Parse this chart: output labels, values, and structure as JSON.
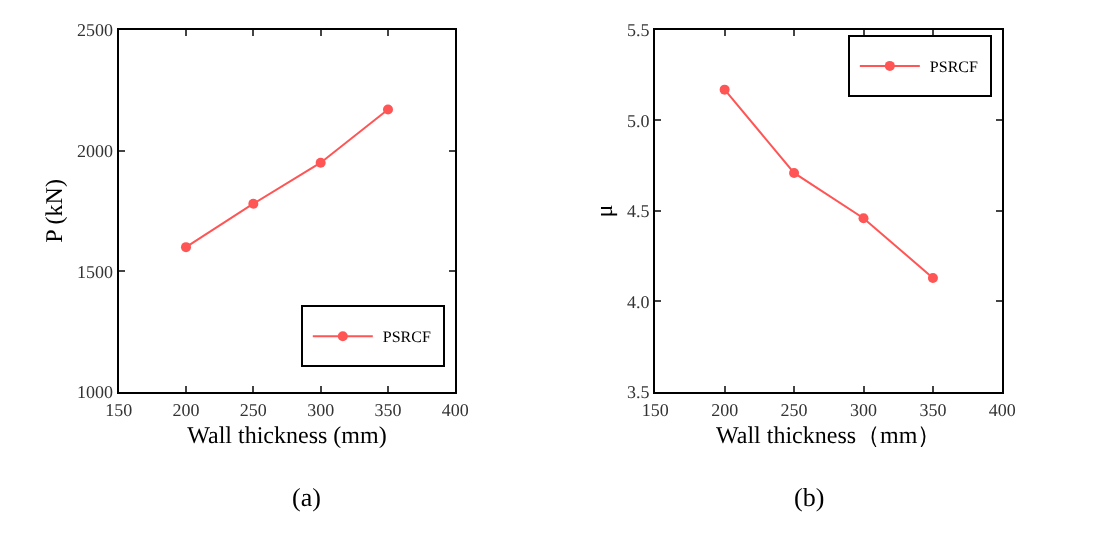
{
  "chart_data": [
    {
      "type": "line",
      "xlabel": "Wall thickness (mm)",
      "ylabel": "P (kN)",
      "annotations": [
        "(a)"
      ],
      "x": [
        200,
        250,
        300,
        350
      ],
      "series": [
        {
          "name": "PSRCF",
          "color": "#ff5555",
          "values": [
            1600,
            1780,
            1950,
            2170
          ]
        }
      ],
      "xlim": [
        150,
        400
      ],
      "xticks": [
        150,
        200,
        250,
        300,
        350,
        400
      ],
      "ylim": [
        1000,
        2500
      ],
      "yticks": [
        1000,
        1500,
        2000,
        2500
      ],
      "legend": "bottom right",
      "marker": "circle",
      "line_style": "solid"
    },
    {
      "type": "line",
      "xlabel": "Wall thickness（mm）",
      "ylabel": "μ",
      "annotations": [
        "(b)"
      ],
      "x": [
        200,
        250,
        300,
        350
      ],
      "series": [
        {
          "name": "PSRCF",
          "color": "#ff5555",
          "values": [
            5.17,
            4.71,
            4.46,
            4.13
          ]
        }
      ],
      "xlim": [
        150,
        400
      ],
      "xticks": [
        150,
        200,
        250,
        300,
        350,
        400
      ],
      "ylim": [
        3.5,
        5.5
      ],
      "yticks": [
        3.5,
        {
          "value": 4,
          "label": "4.0"
        },
        4.5,
        {
          "value": 5,
          "label": "5.0"
        },
        5.5
      ],
      "legend": "top right",
      "marker": "circle",
      "line_style": "solid"
    }
  ]
}
